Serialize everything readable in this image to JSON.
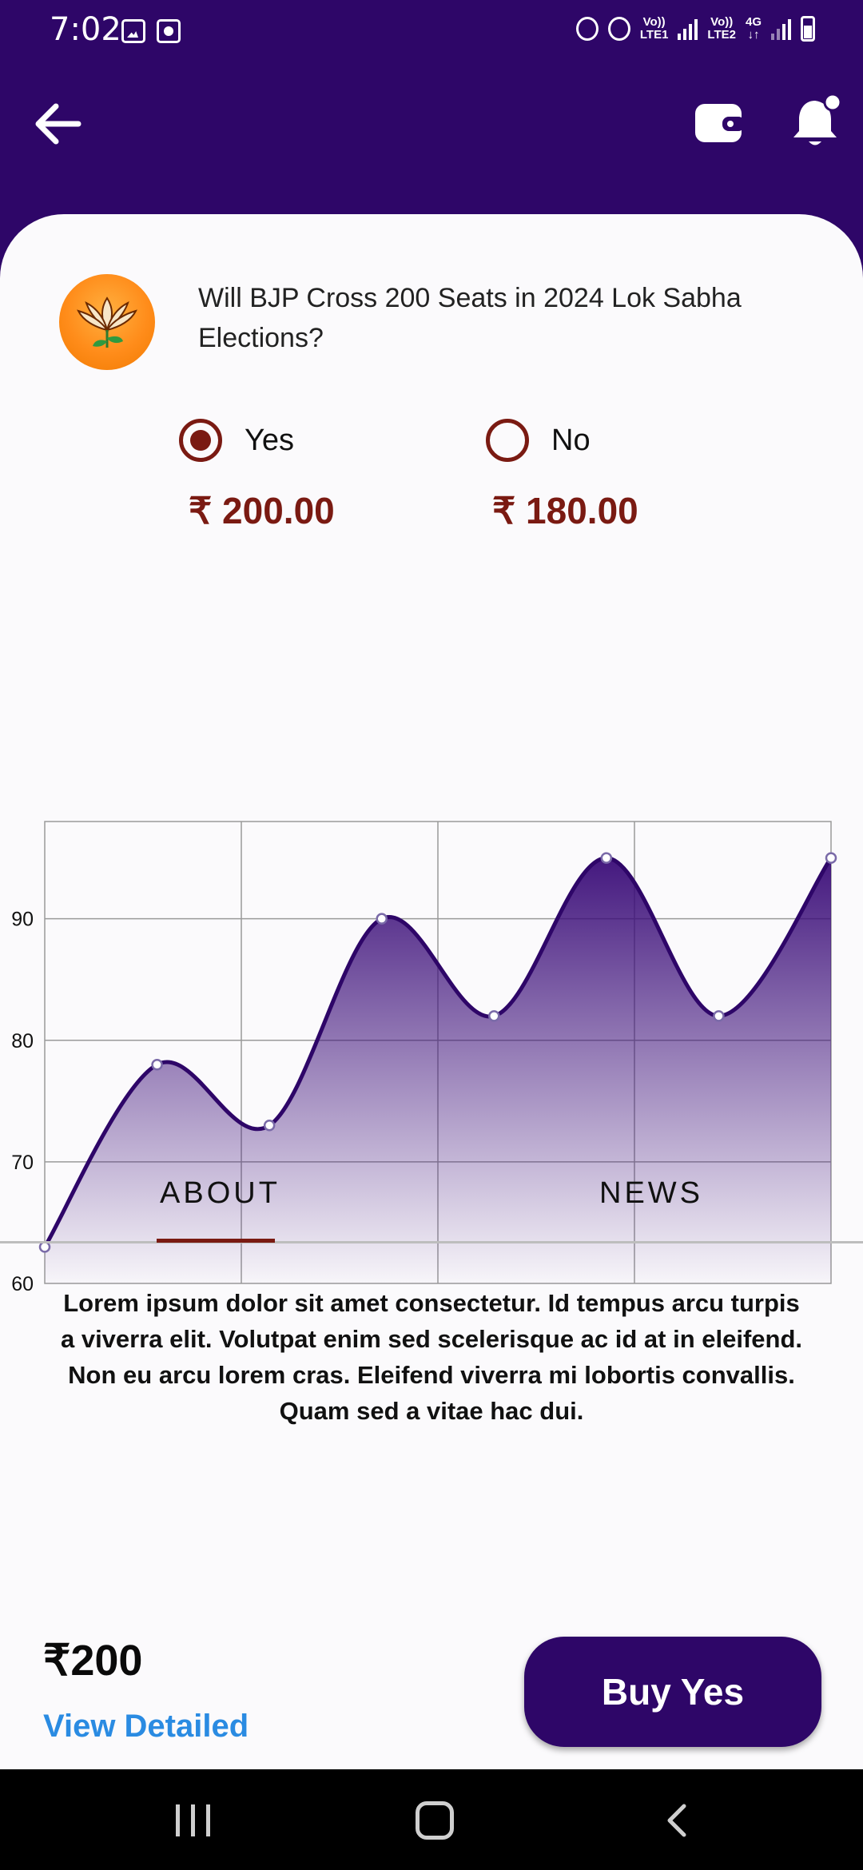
{
  "status_bar": {
    "time": "7:02",
    "sim1_label_top": "Vo))",
    "sim1_label_bottom": "LTE1",
    "sim2_label_top": "Vo))",
    "sim2_label_bottom": "LTE2",
    "network_type": "4G"
  },
  "header": {
    "back_icon": "arrow-left-icon",
    "wallet_icon": "wallet-icon",
    "bell_icon": "bell-notification-icon"
  },
  "market": {
    "logo": "bjp-lotus-logo",
    "question": "Will BJP Cross 200 Seats in 2024 Lok Sabha Elections?",
    "options": [
      {
        "label": "Yes",
        "price": "₹ 200.00",
        "selected": true
      },
      {
        "label": "No",
        "price": "₹ 180.00",
        "selected": false
      }
    ]
  },
  "chart_data": {
    "type": "area",
    "x": [
      0,
      1,
      2,
      3,
      4,
      5,
      6,
      7
    ],
    "values": [
      63,
      78,
      73,
      90,
      82,
      95,
      82,
      95
    ],
    "y_ticks": [
      "60",
      "70",
      "80",
      "90"
    ],
    "ylim": [
      60,
      98
    ],
    "grid": true,
    "color": "#2e0668"
  },
  "tabs": {
    "about": "ABOUT",
    "news": "NEWS",
    "active": "about"
  },
  "about": {
    "text": "Lorem ipsum dolor sit amet consectetur. Id tempus arcu turpis a viverra elit. Volutpat enim sed scelerisque ac id at in eleifend. Non eu arcu lorem cras. Eleifend viverra mi lobortis convallis. Quam sed a vitae hac dui."
  },
  "bottom": {
    "total": "₹200",
    "view_link": "View Detailed",
    "buy_button": "Buy Yes"
  },
  "colors": {
    "primary": "#2e0668",
    "accent": "#7a1a12",
    "link": "#2a8be2"
  }
}
